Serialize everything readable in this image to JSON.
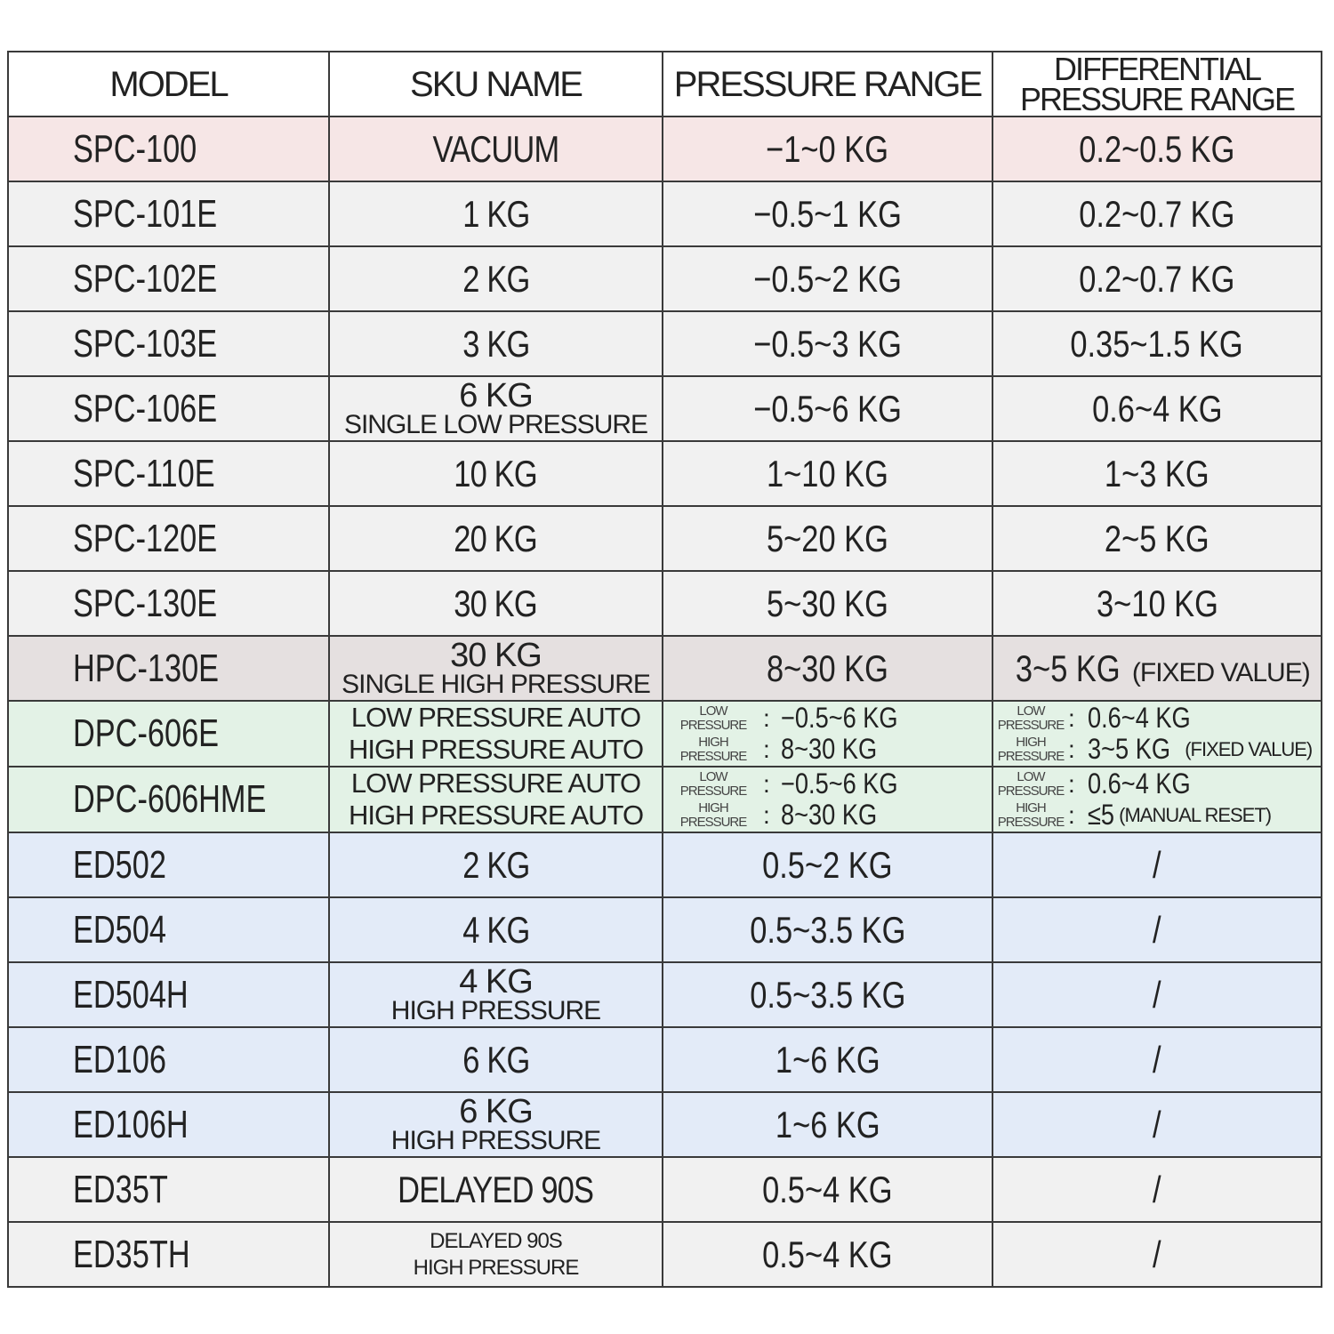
{
  "headers": [
    "MODEL",
    "SKU NAME",
    "PRESSURE RANGE",
    "DIFFERENTIAL PRESSURE RANGE"
  ],
  "colors": {
    "pink": "#f6e6e6",
    "gray": "#f1f1f1",
    "hpc": "#e5e0e0",
    "green": "#e3f2e6",
    "blue": "#e3ebf8",
    "border": "#3a3a3a"
  },
  "rows": [
    {
      "model": "SPC-100",
      "sku": [
        "VACUUM"
      ],
      "pressure": "−1~0 KG",
      "diff": "0.2~0.5 KG",
      "bg": "pink"
    },
    {
      "model": "SPC-101E",
      "sku": [
        "1 KG"
      ],
      "pressure": "−0.5~1 KG",
      "diff": "0.2~0.7 KG",
      "bg": "gray"
    },
    {
      "model": "SPC-102E",
      "sku": [
        "2 KG"
      ],
      "pressure": "−0.5~2 KG",
      "diff": "0.2~0.7 KG",
      "bg": "gray"
    },
    {
      "model": "SPC-103E",
      "sku": [
        "3 KG"
      ],
      "pressure": "−0.5~3 KG",
      "diff": "0.35~1.5 KG",
      "bg": "gray"
    },
    {
      "model": "SPC-106E",
      "sku": [
        "6 KG",
        "SINGLE  LOW PRESSURE"
      ],
      "pressure": "−0.5~6 KG",
      "diff": "0.6~4 KG",
      "bg": "gray"
    },
    {
      "model": "SPC-110E",
      "sku": [
        "10 KG"
      ],
      "pressure": "1~10  KG",
      "diff": "1~3  KG",
      "bg": "gray"
    },
    {
      "model": "SPC-120E",
      "sku": [
        "20 KG"
      ],
      "pressure": "5~20  KG",
      "diff": "2~5  KG",
      "bg": "gray"
    },
    {
      "model": "SPC-130E",
      "sku": [
        "30 KG"
      ],
      "pressure": "5~30  KG",
      "diff": "3~10 KG",
      "bg": "gray"
    },
    {
      "model": "HPC-130E",
      "sku": [
        "30 KG",
        "SINGLE HIGH PRESSURE"
      ],
      "pressure": "8~30 KG",
      "diff": "3~5 KG",
      "diff_note": "(FIXED VALUE)",
      "bg": "hpc"
    },
    {
      "model": "DPC-606E",
      "sku": [
        "LOW PRESSURE AUTO",
        "HIGH PRESSURE AUTO"
      ],
      "bg": "green",
      "pressure_parts": [
        {
          "label": "LOW PRESSURE",
          "value": "−0.5~6 KG"
        },
        {
          "label": "HIGH PRESSURE",
          "value": "8~30 KG"
        }
      ],
      "diff_parts": [
        {
          "label": "LOW PRESSURE",
          "value": "0.6~4 KG",
          "note": ""
        },
        {
          "label": "HIGH PRESSURE",
          "value": "3~5 KG",
          "note": "(FIXED VALUE)"
        }
      ]
    },
    {
      "model": "DPC-606HME",
      "sku": [
        "LOW PRESSURE AUTO",
        "HIGH PRESSURE AUTO"
      ],
      "bg": "green",
      "pressure_parts": [
        {
          "label": "LOW PRESSURE",
          "value": "−0.5~6 KG"
        },
        {
          "label": "HIGH PRESSURE",
          "value": "8~30 KG"
        }
      ],
      "diff_parts": [
        {
          "label": "LOW PRESSURE",
          "value": "0.6~4 KG",
          "note": ""
        },
        {
          "label": "HIGH PRESSURE",
          "value": "≤5",
          "note": "(MANUAL RESET)"
        }
      ]
    },
    {
      "model": "ED502",
      "sku": [
        "2 KG"
      ],
      "pressure": "0.5~2 KG",
      "diff": "/",
      "bg": "blue"
    },
    {
      "model": "ED504",
      "sku": [
        "4 KG"
      ],
      "pressure": "0.5~3.5 KG",
      "diff": "/",
      "bg": "blue"
    },
    {
      "model": "ED504H",
      "sku": [
        "4 KG",
        "HIGH PRESSURE"
      ],
      "pressure": "0.5~3.5 KG",
      "diff": "/",
      "bg": "blue"
    },
    {
      "model": "ED106",
      "sku": [
        "6 KG"
      ],
      "pressure": "1~6 KG",
      "diff": "/",
      "bg": "blue"
    },
    {
      "model": "ED106H",
      "sku": [
        "6 KG",
        "HIGH PRESSURE"
      ],
      "pressure": "1~6  KG",
      "diff": "/",
      "bg": "blue"
    },
    {
      "model": "ED35T",
      "sku": [
        "DELAYED 90S"
      ],
      "pressure": "0.5~4 KG",
      "diff": "/",
      "bg": "gray"
    },
    {
      "model": "ED35TH",
      "sku": [
        "DELAYED 90S",
        "HIGH PRESSURE"
      ],
      "sku_small": true,
      "pressure": "0.5~4 KG",
      "diff": "/",
      "bg": "gray"
    }
  ]
}
